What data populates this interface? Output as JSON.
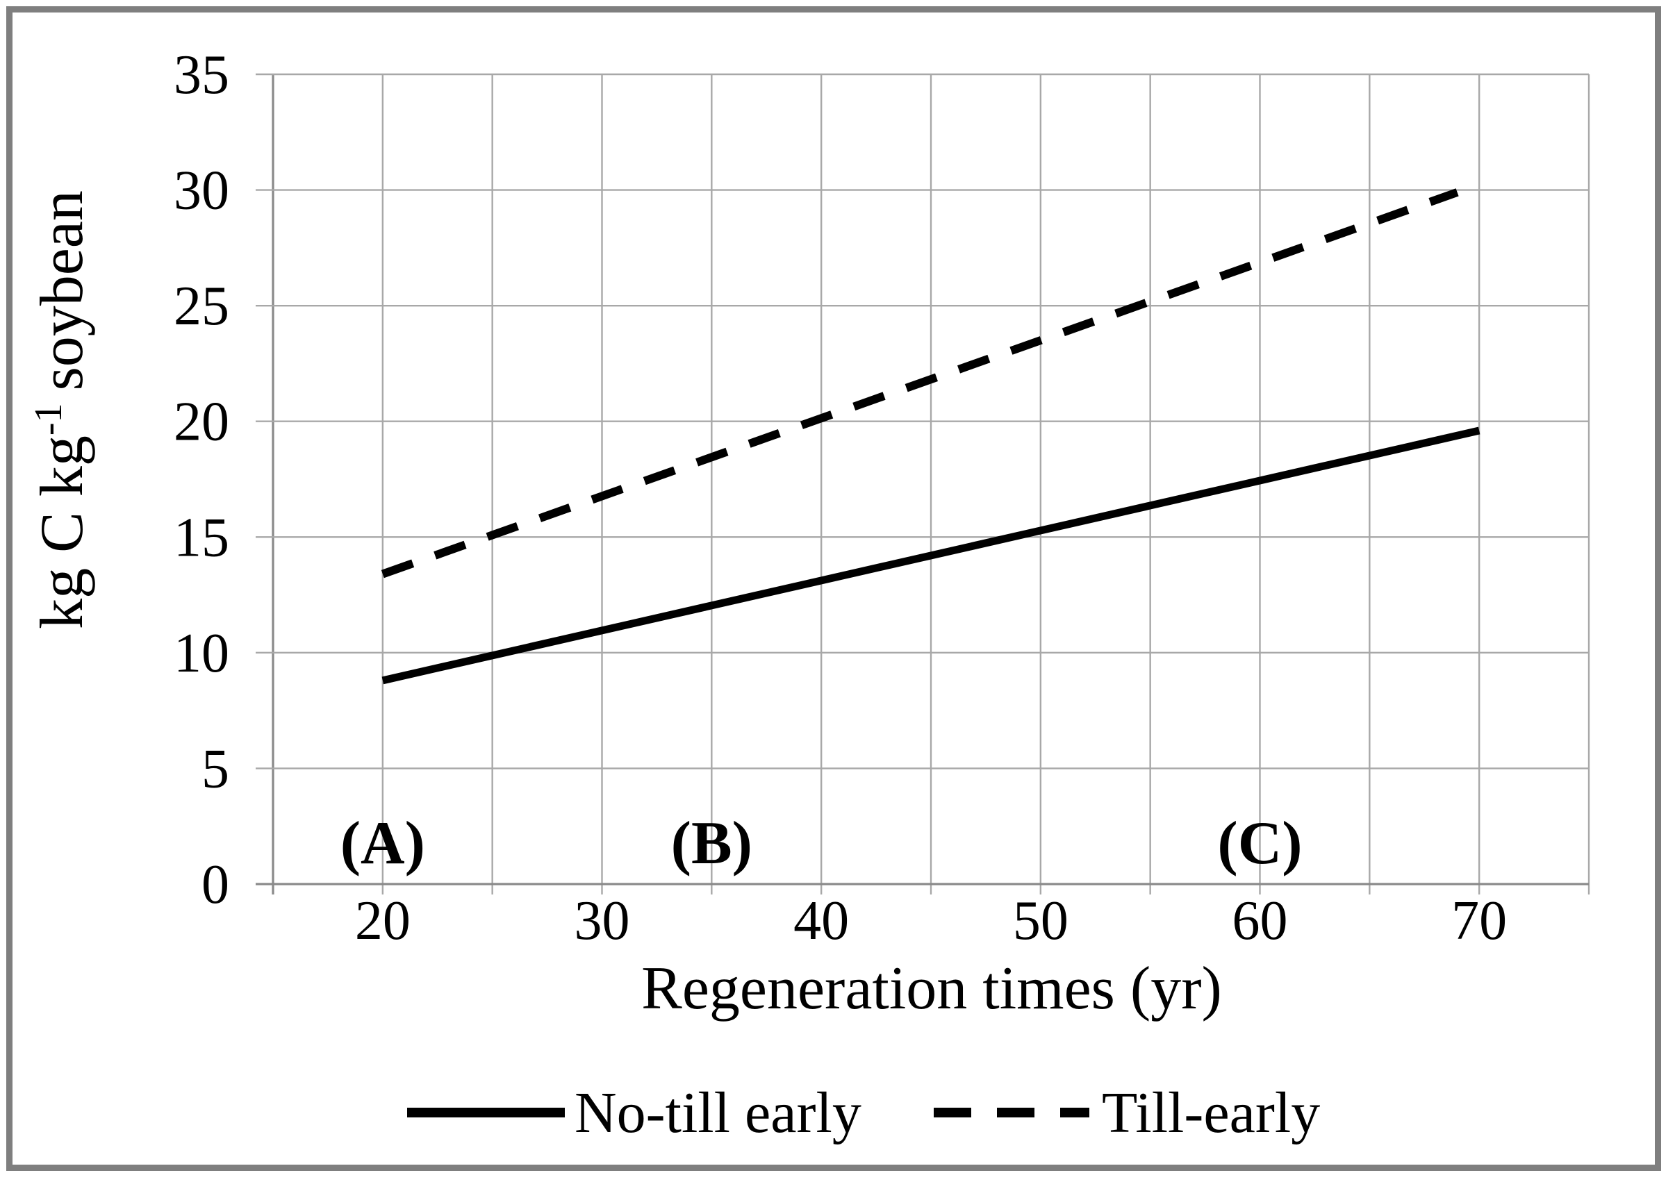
{
  "figure": {
    "background": "#ffffff",
    "border_color": "#7f7f7f"
  },
  "chart_data": {
    "type": "line",
    "title": "",
    "xlabel": "Regeneration times (yr)",
    "ylabel": "kg C kg⁻¹ soybean",
    "ylabel_parts": {
      "pre": "kg C kg",
      "sup": "-1",
      "post": "soybean"
    },
    "xlim": [
      15,
      75
    ],
    "ylim": [
      0,
      35
    ],
    "x_gridline_step": 5,
    "y_gridline_step": 5,
    "x_tick_labels": [
      20,
      30,
      40,
      50,
      60,
      70
    ],
    "y_tick_labels": [
      0,
      5,
      10,
      15,
      20,
      25,
      30,
      35
    ],
    "grid": true,
    "series": [
      {
        "name": "No-till early",
        "style": "solid",
        "color": "#000000",
        "points": [
          [
            20,
            8.8
          ],
          [
            70,
            19.6
          ]
        ]
      },
      {
        "name": "Till-early",
        "style": "dashed",
        "color": "#000000",
        "points": [
          [
            20,
            13.4
          ],
          [
            69,
            29.9
          ]
        ]
      }
    ],
    "annotations": [
      {
        "text": "(A)",
        "x": 20,
        "y": 0.9
      },
      {
        "text": "(B)",
        "x": 35,
        "y": 0.9
      },
      {
        "text": "(C)",
        "x": 60,
        "y": 0.9
      }
    ],
    "legend": {
      "position": "bottom",
      "entries": [
        "No-till early",
        "Till-early"
      ]
    },
    "colors": {
      "line": "#000000",
      "grid": "#a8a8a8",
      "axis": "#8a8a8a",
      "border": "#7f7f7f"
    }
  }
}
